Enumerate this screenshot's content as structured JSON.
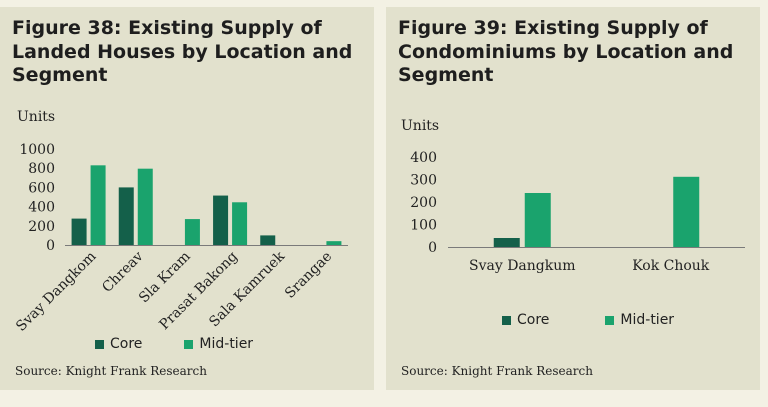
{
  "colors": {
    "core": "#14604a",
    "mid_tier": "#1aa36d",
    "axis": "#7a7a7a"
  },
  "panels": [
    {
      "title": "Figure 38: Existing Supply of Landed Houses by Location and Segment",
      "source": "Source:  Knight Frank Research"
    },
    {
      "title": "Figure 39: Existing Supply of Condominiums by Location and Segment",
      "source": "Source:  Knight Frank Research"
    }
  ],
  "chart_data": [
    {
      "type": "bar",
      "ylabel": "Units",
      "ylim": [
        0,
        1000
      ],
      "yticks": [
        0,
        200,
        400,
        600,
        800,
        1000
      ],
      "categories": [
        "Svay Dangkom",
        "Chreav",
        "Sla Kram",
        "Prasat Bakong",
        "Sala Kamruek",
        "Srangae"
      ],
      "series": [
        {
          "name": "Core",
          "values": [
            275,
            600,
            0,
            515,
            100,
            0
          ]
        },
        {
          "name": "Mid-tier",
          "values": [
            830,
            795,
            270,
            445,
            0,
            40
          ]
        }
      ],
      "legend": "bottom"
    },
    {
      "type": "bar",
      "ylabel": "Units",
      "ylim": [
        0,
        400
      ],
      "yticks": [
        0,
        100,
        200,
        300,
        400
      ],
      "categories": [
        "Svay Dangkum",
        "Kok Chouk"
      ],
      "series": [
        {
          "name": "Core",
          "values": [
            40,
            0
          ]
        },
        {
          "name": "Mid-tier",
          "values": [
            240,
            312
          ]
        }
      ],
      "legend": "bottom"
    }
  ]
}
